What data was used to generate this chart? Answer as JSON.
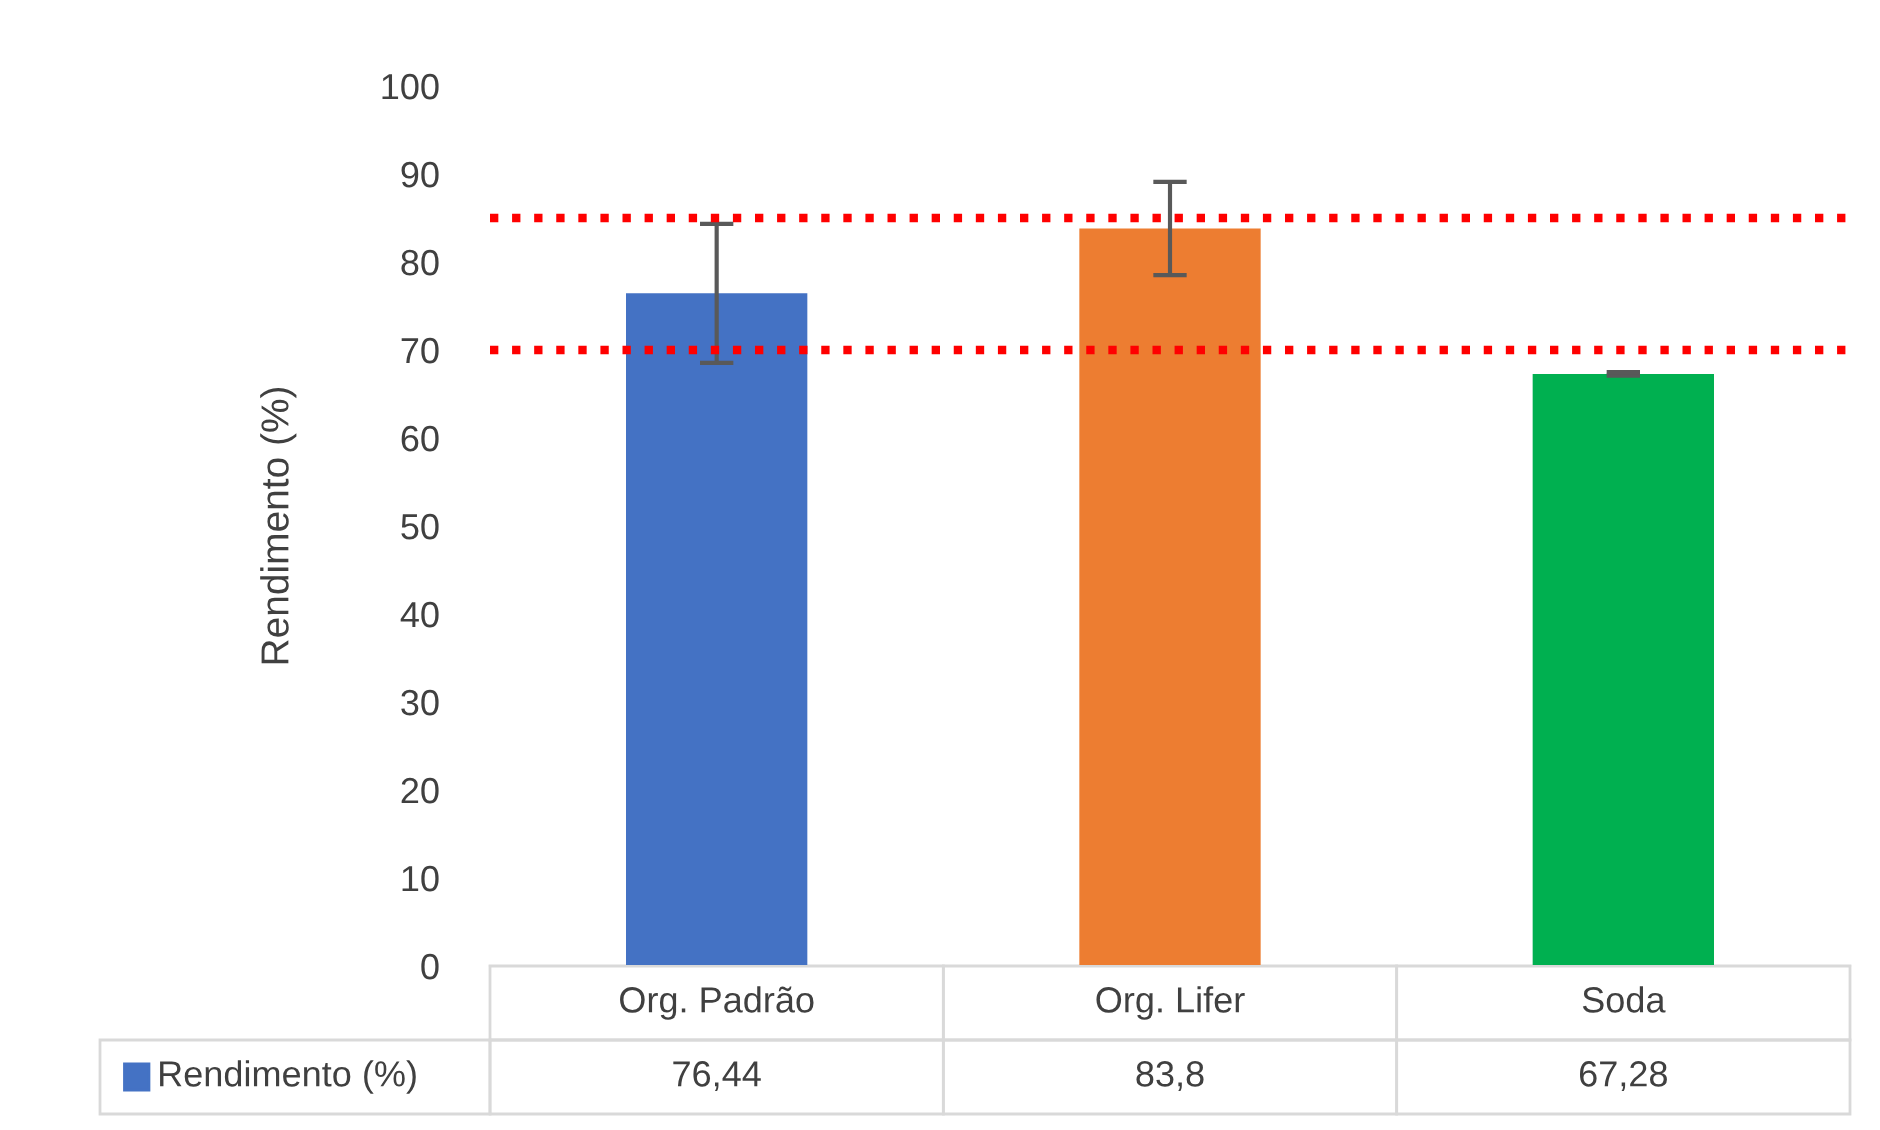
{
  "chart_data": {
    "type": "bar",
    "ylabel": "Rendimento (%)",
    "categories": [
      "Org. Padrão",
      "Org. Lifer",
      "Soda"
    ],
    "series": [
      {
        "name": "Rendimento (%)",
        "color": "#4472c4",
        "colors": [
          "#4472c4",
          "#ed7d31",
          "#00b050"
        ],
        "values": [
          76.44,
          83.8,
          67.28
        ],
        "errors": [
          7.9,
          5.3,
          0.2
        ],
        "value_labels": [
          "76,44",
          "83,8",
          "67,28"
        ]
      }
    ],
    "ylim": [
      0,
      100
    ],
    "yticks": [
      0,
      10,
      20,
      30,
      40,
      50,
      60,
      70,
      80,
      90,
      100
    ],
    "ref_lines": [
      {
        "axis": "y",
        "value": 85,
        "color": "#ff0000",
        "line_style": "dotted"
      },
      {
        "axis": "y",
        "value": 70,
        "color": "#ff0000",
        "line_style": "dotted"
      }
    ],
    "tick_labels": "y",
    "grid": false
  }
}
